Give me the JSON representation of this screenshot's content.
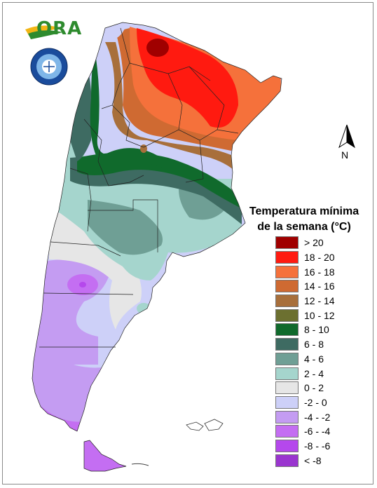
{
  "logo": {
    "brand_text": "ORA",
    "seal_text": "SERVICIO METEOROLOGICO NACIONAL ARGENTINA"
  },
  "north_arrow": {
    "label": "N"
  },
  "legend": {
    "title_line1": "Temperatura mínima",
    "title_line2": "de la semana (°C)",
    "items": [
      {
        "label": "> 20",
        "color": "#a00000"
      },
      {
        "label": "18 - 20",
        "color": "#ff1a10"
      },
      {
        "label": "16 - 18",
        "color": "#f5713b"
      },
      {
        "label": "14 - 16",
        "color": "#cf6a32"
      },
      {
        "label": "12 - 14",
        "color": "#a86f3b"
      },
      {
        "label": "10 - 12",
        "color": "#6c7030"
      },
      {
        "label": "8 - 10",
        "color": "#106a2c"
      },
      {
        "label": "6 - 8",
        "color": "#3e6b62"
      },
      {
        "label": "4 - 6",
        "color": "#6f9f95"
      },
      {
        "label": "2 - 4",
        "color": "#a5d5cd"
      },
      {
        "label": "0 - 2",
        "color": "#e6e6e6"
      },
      {
        "label": "-2 - 0",
        "color": "#cdd0f8"
      },
      {
        "label": "-4 - -2",
        "color": "#c49cf2"
      },
      {
        "label": "-6 - -4",
        "color": "#c46ef2"
      },
      {
        "label": "-8 - -6",
        "color": "#b548ec"
      },
      {
        "label": "< -8",
        "color": "#9a35cf"
      }
    ]
  },
  "palette": {
    "c_gt20": "#a00000",
    "c_18_20": "#ff1a10",
    "c_16_18": "#f5713b",
    "c_14_16": "#cf6a32",
    "c_12_14": "#a86f3b",
    "c_8_10": "#106a2c",
    "c_6_8": "#3e6b62",
    "c_4_6": "#6f9f95",
    "c_2_4": "#a5d5cd",
    "c_0_2": "#e6e6e6",
    "c_m2_0": "#cdd0f8",
    "c_m4_m2": "#c49cf2",
    "c_m6_m4": "#c46ef2",
    "c_m8_m6": "#b548ec",
    "border": "#222222"
  }
}
